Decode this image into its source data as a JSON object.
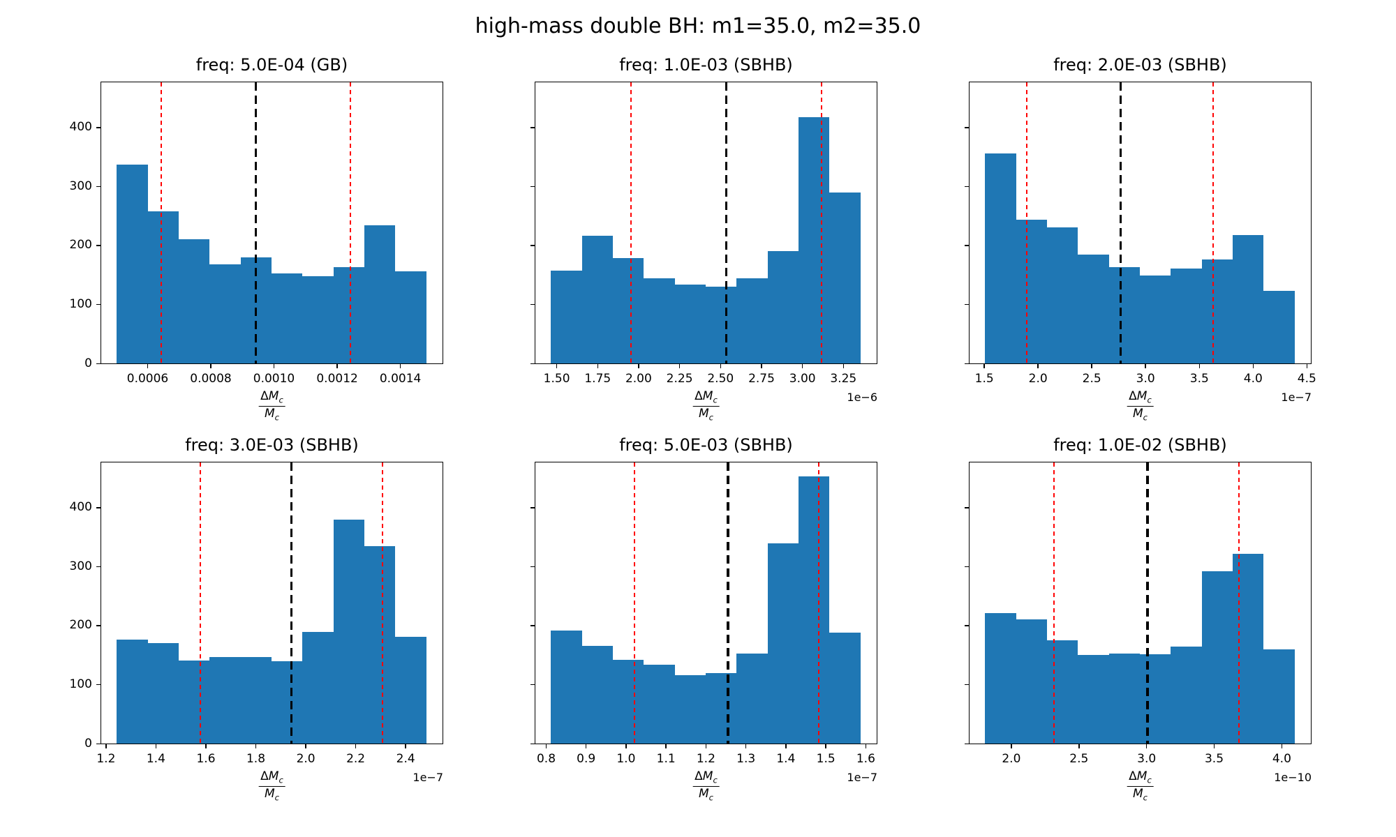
{
  "figure": {
    "title": "high-mass double BH: m1=35.0, m2=35.0",
    "background": "#ffffff"
  },
  "colors": {
    "bar": "#1f77b4",
    "red_dashed_line": "#ff0000",
    "black_dashed_line": "#000000",
    "axis": "#000000"
  },
  "xlabel": {
    "numerator_delta": "Δ",
    "numerator": "M",
    "numerator_sub": "c",
    "denominator": "M",
    "denominator_sub": "c"
  },
  "y_axis": {
    "ticks": [
      0,
      100,
      200,
      300,
      400
    ],
    "tick_labels": [
      "0",
      "100",
      "200",
      "300",
      "400"
    ],
    "max": 475
  },
  "chart_data": [
    {
      "type": "bar",
      "subtype": "histogram",
      "title": "freq: 5.0E-04 (GB)",
      "x_scale_label": "",
      "bin_min": 0.0005,
      "bin_max": 0.00148,
      "counts": [
        337,
        258,
        210,
        168,
        180,
        152,
        148,
        163,
        234,
        156
      ],
      "x_ticks": [
        0.0006,
        0.0008,
        0.001,
        0.0012,
        0.0014
      ],
      "x_tick_labels": [
        "0.0006",
        "0.0008",
        "0.0010",
        "0.0012",
        "0.0014"
      ],
      "red_lines": [
        0.00064,
        0.00124
      ],
      "black_line": 0.00094,
      "show_y_tick_labels": true,
      "ylim": [
        0,
        475
      ]
    },
    {
      "type": "bar",
      "subtype": "histogram",
      "title": "freq: 1.0E-03 (SBHB)",
      "x_scale_label": "1e−6",
      "bin_min": 1.46,
      "bin_max": 3.35,
      "counts": [
        157,
        216,
        179,
        144,
        134,
        130,
        144,
        190,
        417,
        289
      ],
      "x_ticks": [
        1.5,
        1.75,
        2.0,
        2.25,
        2.5,
        2.75,
        3.0,
        3.25
      ],
      "x_tick_labels": [
        "1.50",
        "1.75",
        "2.00",
        "2.25",
        "2.50",
        "2.75",
        "3.00",
        "3.25"
      ],
      "red_lines": [
        1.95,
        3.11
      ],
      "black_line": 2.53,
      "show_y_tick_labels": false,
      "ylim": [
        0,
        475
      ]
    },
    {
      "type": "bar",
      "subtype": "histogram",
      "title": "freq: 2.0E-03 (SBHB)",
      "x_scale_label": "1e−7",
      "bin_min": 1.5,
      "bin_max": 4.38,
      "counts": [
        356,
        243,
        231,
        184,
        163,
        149,
        161,
        176,
        218,
        123
      ],
      "x_ticks": [
        1.5,
        2.0,
        2.5,
        3.0,
        3.5,
        4.0,
        4.5
      ],
      "x_tick_labels": [
        "1.5",
        "2.0",
        "2.5",
        "3.0",
        "3.5",
        "4.0",
        "4.5"
      ],
      "red_lines": [
        1.89,
        3.62
      ],
      "black_line": 2.76,
      "show_y_tick_labels": false,
      "ylim": [
        0,
        475
      ]
    },
    {
      "type": "bar",
      "subtype": "histogram",
      "title": "freq: 3.0E-03 (SBHB)",
      "x_scale_label": "1e−7",
      "bin_min": 1.24,
      "bin_max": 2.48,
      "counts": [
        176,
        170,
        141,
        146,
        147,
        139,
        189,
        379,
        334,
        181
      ],
      "x_ticks": [
        1.2,
        1.4,
        1.6,
        1.8,
        2.0,
        2.2,
        2.4
      ],
      "x_tick_labels": [
        "1.2",
        "1.4",
        "1.6",
        "1.8",
        "2.0",
        "2.2",
        "2.4"
      ],
      "red_lines": [
        1.575,
        2.305
      ],
      "black_line": 1.94,
      "show_y_tick_labels": true,
      "ylim": [
        0,
        475
      ]
    },
    {
      "type": "bar",
      "subtype": "histogram",
      "title": "freq: 5.0E-03 (SBHB)",
      "x_scale_label": "1e−7",
      "bin_min": 0.81,
      "bin_max": 1.585,
      "counts": [
        192,
        166,
        142,
        133,
        116,
        119,
        153,
        339,
        453,
        188
      ],
      "x_ticks": [
        0.8,
        0.9,
        1.0,
        1.1,
        1.2,
        1.3,
        1.4,
        1.5,
        1.6
      ],
      "x_tick_labels": [
        "0.8",
        "0.9",
        "1.0",
        "1.1",
        "1.2",
        "1.3",
        "1.4",
        "1.5",
        "1.6"
      ],
      "red_lines": [
        1.02,
        1.48
      ],
      "black_line": 1.253,
      "show_y_tick_labels": false,
      "ylim": [
        0,
        475
      ]
    },
    {
      "type": "bar",
      "subtype": "histogram",
      "title": "freq: 1.0E-02 (SBHB)",
      "x_scale_label": "1e−10",
      "bin_min": 1.8,
      "bin_max": 4.09,
      "counts": [
        221,
        210,
        175,
        150,
        153,
        151,
        164,
        292,
        322,
        160
      ],
      "x_ticks": [
        2.0,
        2.5,
        3.0,
        3.5,
        4.0
      ],
      "x_tick_labels": [
        "2.0",
        "2.5",
        "3.0",
        "3.5",
        "4.0"
      ],
      "red_lines": [
        2.31,
        3.68
      ],
      "black_line": 3.0,
      "show_y_tick_labels": false,
      "ylim": [
        0,
        475
      ]
    }
  ]
}
